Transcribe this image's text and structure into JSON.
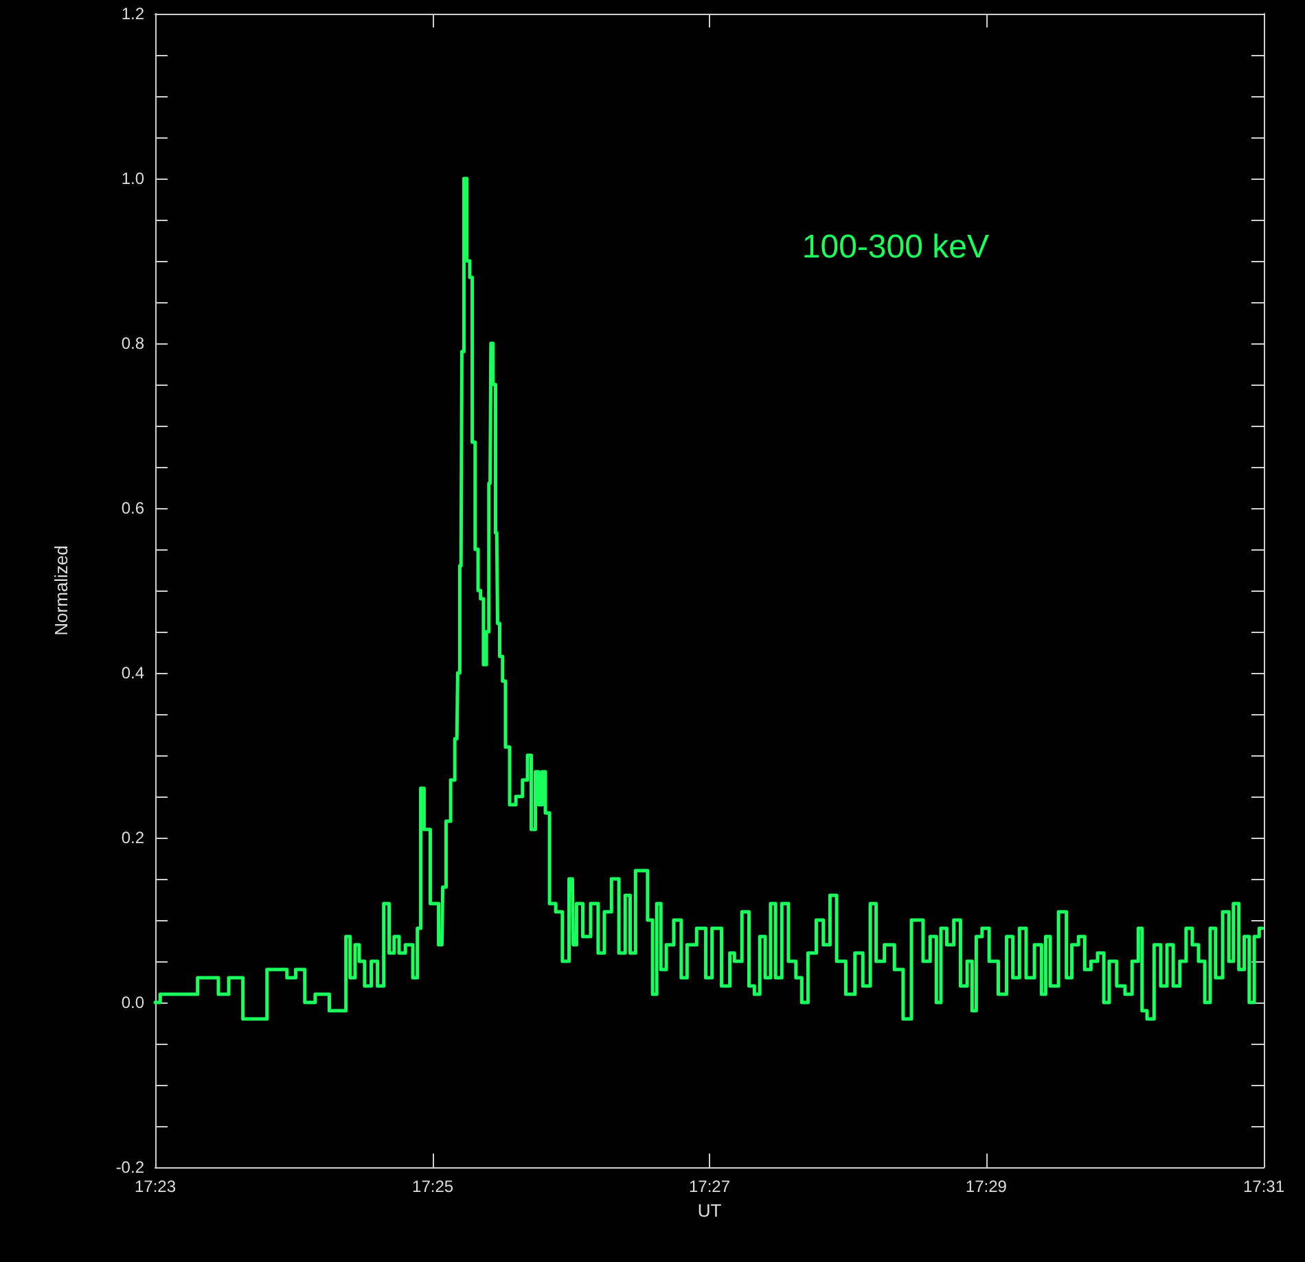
{
  "chart_data": {
    "type": "step",
    "xlabel": "UT",
    "ylabel": "Normalized",
    "xlim": [
      17.3833,
      17.5167
    ],
    "xticks": [
      {
        "value": 17.3833,
        "label": "17:23"
      },
      {
        "value": 17.4167,
        "label": "17:25"
      },
      {
        "value": 17.45,
        "label": "17:27"
      },
      {
        "value": 17.4833,
        "label": "17:29"
      },
      {
        "value": 17.5167,
        "label": "17:31"
      }
    ],
    "ylim": [
      -0.2,
      1.2
    ],
    "yticks": [
      {
        "value": -0.2,
        "label": "-0.2"
      },
      {
        "value": -0.15,
        "label": null
      },
      {
        "value": -0.1,
        "label": null
      },
      {
        "value": -0.05,
        "label": null
      },
      {
        "value": 0,
        "label": "0.0"
      },
      {
        "value": 0.05,
        "label": null
      },
      {
        "value": 0.1,
        "label": null
      },
      {
        "value": 0.15,
        "label": null
      },
      {
        "value": 0.2,
        "label": "0.2"
      },
      {
        "value": 0.25,
        "label": null
      },
      {
        "value": 0.3,
        "label": null
      },
      {
        "value": 0.35,
        "label": null
      },
      {
        "value": 0.4,
        "label": "0.4"
      },
      {
        "value": 0.45,
        "label": null
      },
      {
        "value": 0.5,
        "label": null
      },
      {
        "value": 0.55,
        "label": null
      },
      {
        "value": 0.6,
        "label": "0.6"
      },
      {
        "value": 0.65,
        "label": null
      },
      {
        "value": 0.7,
        "label": null
      },
      {
        "value": 0.75,
        "label": null
      },
      {
        "value": 0.8,
        "label": "0.8"
      },
      {
        "value": 0.85,
        "label": null
      },
      {
        "value": 0.9,
        "label": null
      },
      {
        "value": 0.95,
        "label": null
      },
      {
        "value": 1.0,
        "label": "1.0"
      },
      {
        "value": 1.05,
        "label": null
      },
      {
        "value": 1.1,
        "label": null
      },
      {
        "value": 1.15,
        "label": null
      },
      {
        "value": 1.2,
        "label": "1.2"
      }
    ],
    "grid": false,
    "legend": false,
    "marker": "none",
    "line_style": "solid",
    "series": [
      {
        "name": "100-300 keV",
        "color": "#1aff5e",
        "x": [
          17.3833,
          17.3845,
          17.3866,
          17.3902,
          17.3916,
          17.3927,
          17.395,
          17.3985,
          17.3998,
          17.4006,
          17.402,
          17.4031,
          17.4054,
          17.4061,
          17.4064,
          17.4071,
          17.4076,
          17.4081,
          17.4089,
          17.4097,
          17.4104,
          17.4112,
          17.4117,
          17.4124,
          17.4129,
          17.4139,
          17.4147,
          17.415,
          17.4155,
          17.4158,
          17.417,
          17.4178,
          17.418,
          17.4186,
          17.4191,
          17.4196,
          17.4198,
          17.4201,
          17.4203,
          17.4206,
          17.421,
          17.4213,
          17.4216,
          17.422,
          17.4223,
          17.4226,
          17.423,
          17.4233,
          17.4236,
          17.4238,
          17.4241,
          17.4244,
          17.4246,
          17.4249,
          17.4253,
          17.4256,
          17.4263,
          17.4271,
          17.4279,
          17.4283,
          17.4288,
          17.4293,
          17.4296,
          17.4301,
          17.4304,
          17.4311,
          17.4319,
          17.4327,
          17.4335,
          17.4337,
          17.4343,
          17.4352,
          17.4362,
          17.437,
          17.4377,
          17.4387,
          17.4395,
          17.4402,
          17.4407,
          17.4415,
          17.4423,
          17.4428,
          17.4435,
          17.4438,
          17.4445,
          17.4451,
          17.4463,
          17.4469,
          17.4477,
          17.4492,
          17.4499,
          17.4507,
          17.4522,
          17.4527,
          17.4533,
          17.4545,
          17.455,
          17.4558,
          17.4563,
          17.4571,
          17.4576,
          17.4583,
          17.4591,
          17.4599,
          17.4609,
          17.4613,
          17.4624,
          17.4633,
          17.4641,
          17.4649,
          17.4657,
          17.4671,
          17.4679,
          17.469,
          17.4697,
          17.4704,
          17.4717,
          17.4728,
          17.4738,
          17.4748,
          17.4753,
          17.4761,
          17.477,
          17.4776,
          17.4781,
          17.479,
          17.4798,
          17.4806,
          17.4814,
          17.4818,
          17.4824,
          17.4832,
          17.4841,
          17.4854,
          17.4861,
          17.4869,
          17.4877,
          17.4885,
          17.4897,
          17.4902,
          17.4907,
          17.4913,
          17.4927,
          17.4932,
          17.494,
          17.4948,
          17.4955,
          17.4963,
          17.4971,
          17.4978,
          17.4984,
          17.4996,
          17.5004,
          17.5013,
          17.5019,
          17.5022,
          17.5031,
          17.5039,
          17.5047,
          17.5054,
          17.5062,
          17.507,
          17.5077,
          17.5085,
          17.5092,
          17.51,
          17.5105,
          17.5113,
          17.5122,
          17.5128,
          17.5133,
          17.5141,
          17.5146,
          17.5153,
          17.5158,
          17.5165
        ],
        "values": [
          0.0,
          0.01,
          0.01,
          0.03,
          0.01,
          0.03,
          -0.02,
          0.04,
          0.03,
          0.04,
          0.0,
          0.01,
          -0.01,
          -0.01,
          0.08,
          0.03,
          0.07,
          0.05,
          0.02,
          0.05,
          0.02,
          0.12,
          0.06,
          0.08,
          0.06,
          0.07,
          0.03,
          0.09,
          0.26,
          0.21,
          0.12,
          0.07,
          0.14,
          0.22,
          0.27,
          0.32,
          0.4,
          0.53,
          0.79,
          1.0,
          0.9,
          0.88,
          0.68,
          0.55,
          0.5,
          0.49,
          0.41,
          0.45,
          0.63,
          0.8,
          0.75,
          0.57,
          0.46,
          0.42,
          0.39,
          0.31,
          0.24,
          0.25,
          0.27,
          0.3,
          0.21,
          0.28,
          0.24,
          0.28,
          0.23,
          0.12,
          0.11,
          0.05,
          0.15,
          0.07,
          0.12,
          0.08,
          0.12,
          0.06,
          0.11,
          0.15,
          0.06,
          0.13,
          0.06,
          0.16,
          0.16,
          0.1,
          0.01,
          0.12,
          0.04,
          0.07,
          0.1,
          0.03,
          0.07,
          0.09,
          0.03,
          0.09,
          0.02,
          0.06,
          0.05,
          0.11,
          0.02,
          0.01,
          0.08,
          0.03,
          0.12,
          0.03,
          0.12,
          0.05,
          0.03,
          0.0,
          0.06,
          0.1,
          0.07,
          0.13,
          0.05,
          0.01,
          0.06,
          0.02,
          0.12,
          0.05,
          0.07,
          0.04,
          -0.02,
          0.1,
          0.1,
          0.05,
          0.08,
          0.0,
          0.09,
          0.07,
          0.1,
          0.02,
          0.05,
          -0.01,
          0.08,
          0.09,
          0.05,
          0.01,
          0.08,
          0.03,
          0.09,
          0.03,
          0.07,
          0.01,
          0.08,
          0.02,
          0.11,
          0.03,
          0.07,
          0.08,
          0.04,
          0.05,
          0.06,
          0.0,
          0.05,
          0.02,
          0.01,
          0.05,
          0.09,
          -0.01,
          -0.02,
          0.07,
          0.02,
          0.07,
          0.02,
          0.05,
          0.09,
          0.07,
          0.05,
          0.0,
          0.09,
          0.03,
          0.11,
          0.05,
          0.12,
          0.04,
          0.08,
          0.0,
          0.08,
          0.09
        ]
      }
    ]
  }
}
